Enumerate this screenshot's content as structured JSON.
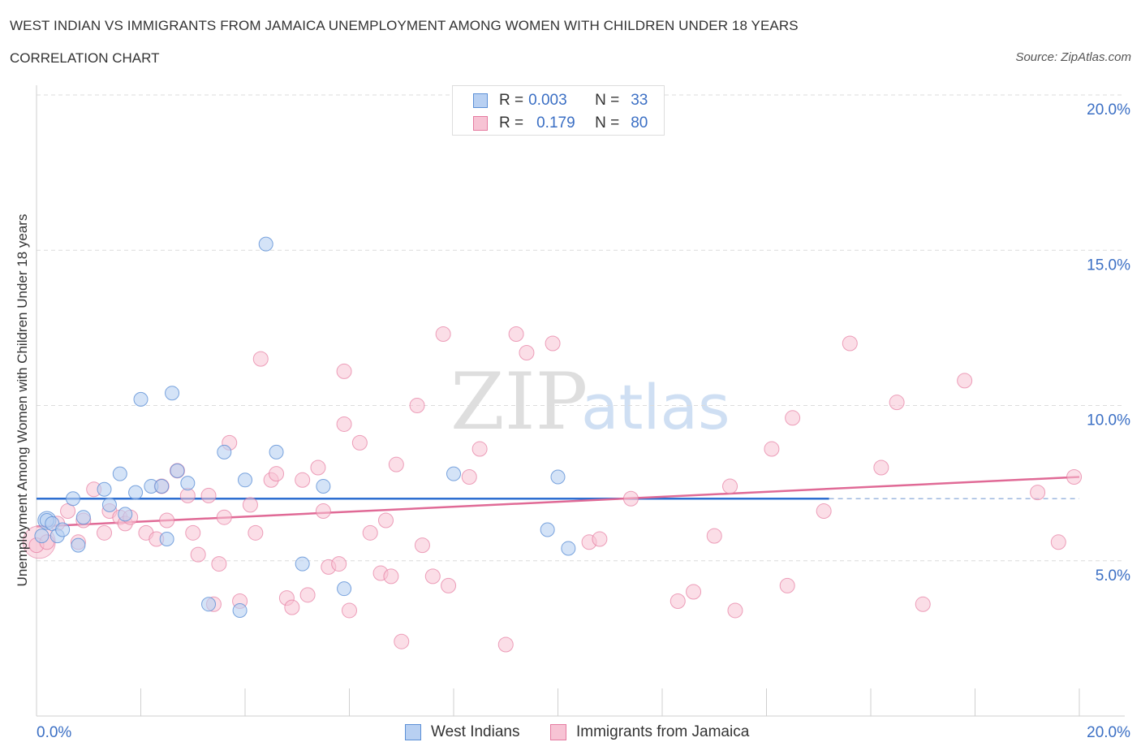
{
  "header": {
    "title": "WEST INDIAN VS IMMIGRANTS FROM JAMAICA UNEMPLOYMENT AMONG WOMEN WITH CHILDREN UNDER 18 YEARS",
    "subtitle": "CORRELATION CHART",
    "source": "Source: ZipAtlas.com"
  },
  "watermark": {
    "zip": "ZIP",
    "atlas": "atlas"
  },
  "legend": {
    "series1": {
      "r_label": "R =",
      "r_value": "0.003",
      "n_label": "N =",
      "n_value": "33"
    },
    "series2": {
      "r_label": "R =",
      "r_value": "0.179",
      "n_label": "N =",
      "n_value": "80"
    }
  },
  "colors": {
    "blue": "#5b8fd6",
    "blue_fill": "#b8d0f2",
    "pink": "#e57aa0",
    "pink_fill": "#f7c3d4",
    "blue_line": "#2e6fd1",
    "pink_line": "#e06a96",
    "tick_color": "#3b6fc4"
  },
  "chart_data": {
    "type": "scatter",
    "ylabel": "Unemployment Among Women with Children Under 18 years",
    "xlim": [
      0,
      20
    ],
    "ylim": [
      0,
      20
    ],
    "x_tick_labels": [
      "0.0%",
      "20.0%"
    ],
    "y_ticks": [
      5,
      10,
      15,
      20
    ],
    "y_tick_labels": [
      "5.0%",
      "10.0%",
      "15.0%",
      "20.0%"
    ],
    "grid": true,
    "series": [
      {
        "name": "West Indians",
        "trend": {
          "x": [
            0,
            15.2
          ],
          "y": [
            7.0,
            7.0
          ],
          "dashed_to": 20
        },
        "points": [
          [
            0.1,
            5.8
          ],
          [
            0.2,
            6.3
          ],
          [
            0.3,
            6.2
          ],
          [
            0.4,
            5.8
          ],
          [
            0.5,
            6.0
          ],
          [
            0.7,
            7.0
          ],
          [
            0.8,
            5.5
          ],
          [
            0.9,
            6.4
          ],
          [
            1.3,
            7.3
          ],
          [
            1.4,
            6.8
          ],
          [
            1.6,
            7.8
          ],
          [
            1.7,
            6.5
          ],
          [
            1.9,
            7.2
          ],
          [
            2.0,
            10.2
          ],
          [
            2.2,
            7.4
          ],
          [
            2.4,
            7.4
          ],
          [
            2.6,
            10.4
          ],
          [
            2.7,
            7.9
          ],
          [
            2.9,
            7.5
          ],
          [
            3.3,
            3.6
          ],
          [
            3.6,
            8.5
          ],
          [
            3.9,
            3.4
          ],
          [
            4.0,
            7.6
          ],
          [
            4.4,
            15.2
          ],
          [
            4.6,
            8.5
          ],
          [
            5.1,
            4.9
          ],
          [
            5.5,
            7.4
          ],
          [
            5.9,
            4.1
          ],
          [
            8.0,
            7.8
          ],
          [
            9.8,
            6.0
          ],
          [
            10.0,
            7.7
          ],
          [
            10.2,
            5.4
          ],
          [
            2.5,
            5.7
          ]
        ]
      },
      {
        "name": "Immigrants from Jamaica",
        "trend": {
          "x": [
            0,
            20
          ],
          "y": [
            6.1,
            7.7
          ]
        },
        "points": [
          [
            0.0,
            5.5
          ],
          [
            0.2,
            5.6
          ],
          [
            0.4,
            6.2
          ],
          [
            0.6,
            6.6
          ],
          [
            0.8,
            5.6
          ],
          [
            0.9,
            6.3
          ],
          [
            1.1,
            7.3
          ],
          [
            1.3,
            5.9
          ],
          [
            1.4,
            6.6
          ],
          [
            1.6,
            6.4
          ],
          [
            1.7,
            6.2
          ],
          [
            1.8,
            6.4
          ],
          [
            2.1,
            5.9
          ],
          [
            2.3,
            5.7
          ],
          [
            2.4,
            7.4
          ],
          [
            2.5,
            6.3
          ],
          [
            2.7,
            7.9
          ],
          [
            2.9,
            7.1
          ],
          [
            3.0,
            5.9
          ],
          [
            3.1,
            5.2
          ],
          [
            3.3,
            7.1
          ],
          [
            3.4,
            3.6
          ],
          [
            3.5,
            4.9
          ],
          [
            3.6,
            6.4
          ],
          [
            3.7,
            8.8
          ],
          [
            3.9,
            3.7
          ],
          [
            4.1,
            6.8
          ],
          [
            4.2,
            5.9
          ],
          [
            4.3,
            11.5
          ],
          [
            4.5,
            7.6
          ],
          [
            4.6,
            7.8
          ],
          [
            4.8,
            3.8
          ],
          [
            4.9,
            3.5
          ],
          [
            5.1,
            7.6
          ],
          [
            5.2,
            3.9
          ],
          [
            5.4,
            8.0
          ],
          [
            5.5,
            6.6
          ],
          [
            5.6,
            4.8
          ],
          [
            5.8,
            4.9
          ],
          [
            5.9,
            11.1
          ],
          [
            5.9,
            9.4
          ],
          [
            6.0,
            3.4
          ],
          [
            6.2,
            8.8
          ],
          [
            6.4,
            5.9
          ],
          [
            6.6,
            4.6
          ],
          [
            6.7,
            6.3
          ],
          [
            6.8,
            4.5
          ],
          [
            6.9,
            8.1
          ],
          [
            7.0,
            2.4
          ],
          [
            7.3,
            10.0
          ],
          [
            7.4,
            5.5
          ],
          [
            7.6,
            4.5
          ],
          [
            7.8,
            12.3
          ],
          [
            7.9,
            4.2
          ],
          [
            8.3,
            7.7
          ],
          [
            8.5,
            8.6
          ],
          [
            9.0,
            2.3
          ],
          [
            9.2,
            12.3
          ],
          [
            9.4,
            11.7
          ],
          [
            9.9,
            12.0
          ],
          [
            10.6,
            5.6
          ],
          [
            10.8,
            5.7
          ],
          [
            12.3,
            3.7
          ],
          [
            12.6,
            4.0
          ],
          [
            13.0,
            5.8
          ],
          [
            13.3,
            7.4
          ],
          [
            13.4,
            3.4
          ],
          [
            14.1,
            8.6
          ],
          [
            14.4,
            4.2
          ],
          [
            14.5,
            9.6
          ],
          [
            15.1,
            6.6
          ],
          [
            15.6,
            12.0
          ],
          [
            16.2,
            8.0
          ],
          [
            16.5,
            10.1
          ],
          [
            17.0,
            3.6
          ],
          [
            17.8,
            10.8
          ],
          [
            19.2,
            7.2
          ],
          [
            19.6,
            5.6
          ],
          [
            19.9,
            7.7
          ],
          [
            11.4,
            7.0
          ]
        ]
      }
    ]
  },
  "bottom_legend": {
    "item1": "West Indians",
    "item2": "Immigrants from Jamaica"
  }
}
